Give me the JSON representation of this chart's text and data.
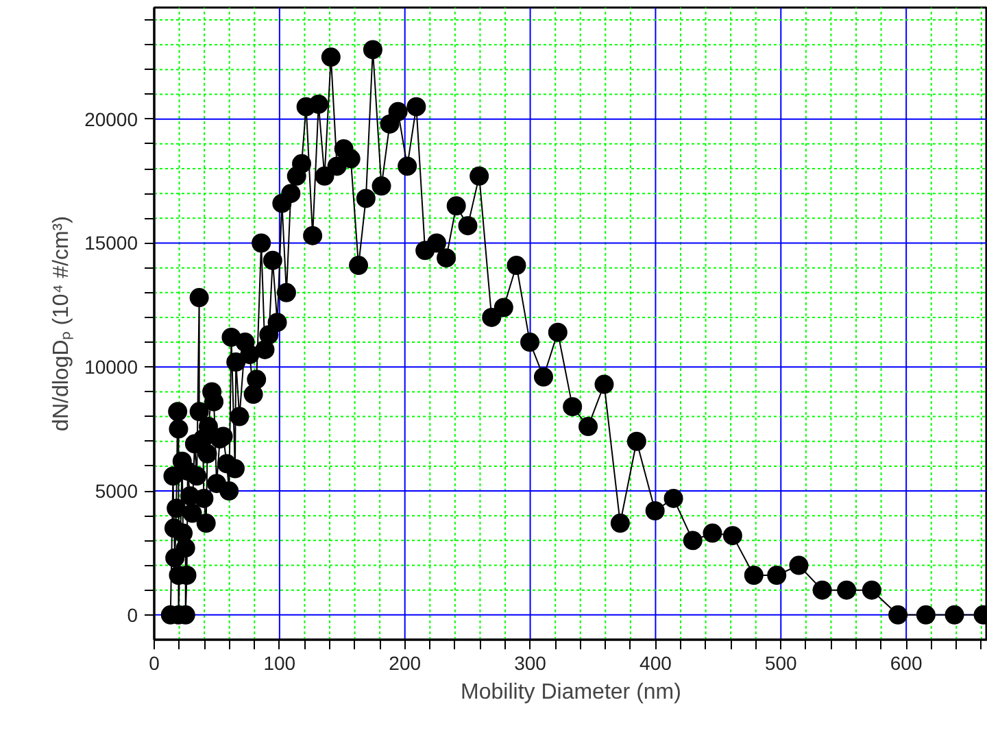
{
  "chart_data": {
    "type": "line",
    "xlabel": "Mobility Diameter (nm)",
    "ylabel": "dN/dlogDₚ (10⁴ #/cm³)",
    "xlim": [
      0,
      665
    ],
    "ylim": [
      -1000,
      24500
    ],
    "xticks": [
      0,
      {
        "value": 20,
        "label": null
      },
      {
        "value": 40,
        "label": null
      },
      {
        "value": 60,
        "label": null
      },
      {
        "value": 80,
        "label": null
      },
      100,
      {
        "value": 120,
        "label": null
      },
      {
        "value": 140,
        "label": null
      },
      {
        "value": 160,
        "label": null
      },
      {
        "value": 180,
        "label": null
      },
      200,
      {
        "value": 220,
        "label": null
      },
      {
        "value": 240,
        "label": null
      },
      {
        "value": 260,
        "label": null
      },
      {
        "value": 280,
        "label": null
      },
      300,
      {
        "value": 320,
        "label": null
      },
      {
        "value": 340,
        "label": null
      },
      {
        "value": 360,
        "label": null
      },
      {
        "value": 380,
        "label": null
      },
      400,
      {
        "value": 420,
        "label": null
      },
      {
        "value": 440,
        "label": null
      },
      {
        "value": 460,
        "label": null
      },
      {
        "value": 480,
        "label": null
      },
      500,
      {
        "value": 520,
        "label": null
      },
      {
        "value": 540,
        "label": null
      },
      {
        "value": 560,
        "label": null
      },
      {
        "value": 580,
        "label": null
      },
      600,
      {
        "value": 620,
        "label": null
      },
      {
        "value": 640,
        "label": null
      },
      {
        "value": 660,
        "label": null
      }
    ],
    "yticks": [
      0,
      {
        "value": 1000,
        "label": null
      },
      {
        "value": 2000,
        "label": null
      },
      {
        "value": 3000,
        "label": null
      },
      {
        "value": 4000,
        "label": null
      },
      5000,
      {
        "value": 6000,
        "label": null
      },
      {
        "value": 7000,
        "label": null
      },
      {
        "value": 8000,
        "label": null
      },
      {
        "value": 9000,
        "label": null
      },
      10000,
      {
        "value": 11000,
        "label": null
      },
      {
        "value": 12000,
        "label": null
      },
      {
        "value": 13000,
        "label": null
      },
      {
        "value": 14000,
        "label": null
      },
      15000,
      {
        "value": 16000,
        "label": null
      },
      {
        "value": 17000,
        "label": null
      },
      {
        "value": 18000,
        "label": null
      },
      {
        "value": 19000,
        "label": null
      },
      20000,
      {
        "value": 21000,
        "label": null
      },
      {
        "value": 22000,
        "label": null
      },
      {
        "value": 23000,
        "label": null
      },
      {
        "value": 24000,
        "label": null
      }
    ],
    "grid": true,
    "marker": "circle",
    "line_style": "solid",
    "series": [
      {
        "color": "#000000",
        "x": [
          13,
          15,
          15.8,
          16.5,
          17.6,
          18.7,
          19.4,
          19.4,
          19.4,
          22.3,
          23,
          25,
          25,
          26,
          26.7,
          28.6,
          30.4,
          32.2,
          34,
          35.9,
          35.9,
          38.8,
          39.6,
          41.4,
          42.4,
          43.2,
          46,
          47.6,
          49.8,
          52.4,
          55,
          57.9,
          59.7,
          61.5,
          64.5,
          65.2,
          68,
          72.5,
          76.2,
          79.1,
          81.6,
          85.4,
          88.3,
          91.5,
          94.5,
          98.2,
          101.9,
          105.5,
          109,
          113.6,
          117.6,
          121.2,
          126.4,
          131.1,
          135.9,
          141,
          145.8,
          151.3,
          156.8,
          163,
          168.9,
          174.4,
          181.3,
          187.9,
          194.5,
          201.9,
          209.1,
          216.1,
          225.3,
          233,
          241,
          250.2,
          259.3,
          269.2,
          278.8,
          289,
          299.7,
          310.6,
          322,
          333.7,
          346.2,
          359,
          371.8,
          384.9,
          399.6,
          414.3,
          429.7,
          445.4,
          461.5,
          478.4,
          496.7,
          514.3,
          533,
          552.4,
          572.5,
          593.4,
          615.7,
          638.5,
          661.5
        ],
        "values": [
          0,
          5600,
          3500,
          2300,
          4300,
          8200,
          7500,
          1600,
          0,
          6200,
          3300,
          2700,
          0,
          1600,
          5800,
          4800,
          4100,
          6900,
          5600,
          12800,
          8200,
          7100,
          4700,
          3700,
          6500,
          7600,
          9000,
          8600,
          5300,
          7100,
          7200,
          6100,
          5000,
          11200,
          5900,
          10200,
          8000,
          11000,
          10500,
          8900,
          9500,
          15000,
          10700,
          11300,
          14300,
          11800,
          16600,
          13000,
          17000,
          17700,
          18200,
          20500,
          15300,
          20600,
          17700,
          22500,
          18100,
          18800,
          18400,
          14100,
          16800,
          22800,
          17300,
          19800,
          20300,
          18100,
          20500,
          14700,
          15000,
          14400,
          16500,
          15700,
          17700,
          12000,
          12400,
          14100,
          11000,
          9600,
          11400,
          8400,
          7600,
          9300,
          3700,
          7000,
          4200,
          4700,
          3000,
          3300,
          3200,
          1600,
          1600,
          2000,
          1000,
          1000,
          1000,
          0,
          0,
          0,
          0
        ]
      }
    ]
  }
}
